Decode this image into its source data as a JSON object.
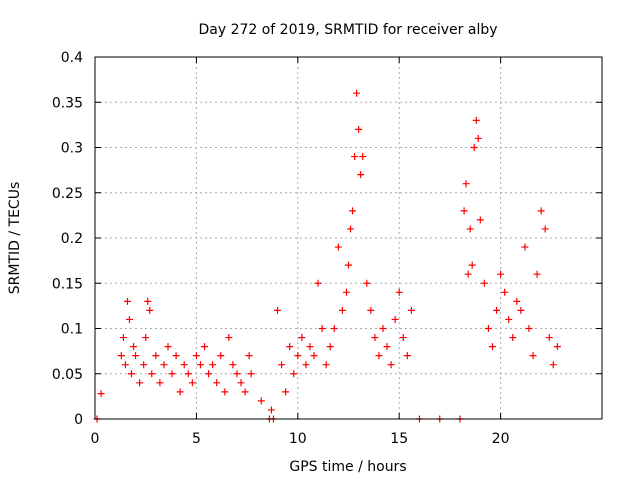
{
  "chart_data": {
    "type": "scatter",
    "title": "Day 272 of 2019, SRMTID for receiver alby",
    "xlabel": "GPS time / hours",
    "ylabel": "SRMTID / TECUs",
    "xlim": [
      0,
      25
    ],
    "ylim": [
      0,
      0.4
    ],
    "grid": true,
    "marker": "+",
    "series_color": "#ff0000",
    "x_ticks": [
      0,
      5,
      10,
      15,
      20
    ],
    "x_tick_labels": [
      "0",
      "5",
      "10",
      "15",
      "20"
    ],
    "y_ticks": [
      0,
      0.05,
      0.1,
      0.15,
      0.2,
      0.25,
      0.3,
      0.35,
      0.4
    ],
    "y_tick_labels": [
      "0",
      "0.05",
      "0.1",
      "0.15",
      "0.2",
      "0.25",
      "0.3",
      "0.35",
      "0.4"
    ],
    "series": [
      {
        "name": "SRMTID",
        "x": [
          0.1,
          0.3,
          1.3,
          1.4,
          1.5,
          1.6,
          1.7,
          1.8,
          1.9,
          2.0,
          2.2,
          2.4,
          2.5,
          2.6,
          2.7,
          2.8,
          3.0,
          3.2,
          3.4,
          3.6,
          3.8,
          4.0,
          4.2,
          4.4,
          4.6,
          4.8,
          5.0,
          5.2,
          5.4,
          5.6,
          5.8,
          6.0,
          6.2,
          6.4,
          6.6,
          6.8,
          7.0,
          7.2,
          7.4,
          7.6,
          7.7,
          8.2,
          8.6,
          8.7,
          8.8,
          9.0,
          9.2,
          9.4,
          9.6,
          9.8,
          10.0,
          10.2,
          10.4,
          10.6,
          10.8,
          11.0,
          11.2,
          11.4,
          11.6,
          11.8,
          12.0,
          12.2,
          12.4,
          12.5,
          12.6,
          12.7,
          12.8,
          12.9,
          13.0,
          13.1,
          13.2,
          13.4,
          13.6,
          13.8,
          14.0,
          14.2,
          14.4,
          14.6,
          14.8,
          15.0,
          15.2,
          15.4,
          15.6,
          16.0,
          17.0,
          18.0,
          18.2,
          18.3,
          18.4,
          18.5,
          18.6,
          18.7,
          18.8,
          18.9,
          19.0,
          19.2,
          19.4,
          19.6,
          19.8,
          20.0,
          20.2,
          20.4,
          20.6,
          20.8,
          21.0,
          21.2,
          21.4,
          21.6,
          21.8,
          22.0,
          22.2,
          22.4,
          22.6,
          22.8
        ],
        "y": [
          0.0,
          0.028,
          0.07,
          0.09,
          0.06,
          0.13,
          0.11,
          0.05,
          0.08,
          0.07,
          0.04,
          0.06,
          0.09,
          0.13,
          0.12,
          0.05,
          0.07,
          0.04,
          0.06,
          0.08,
          0.05,
          0.07,
          0.03,
          0.06,
          0.05,
          0.04,
          0.07,
          0.06,
          0.08,
          0.05,
          0.06,
          0.04,
          0.07,
          0.03,
          0.09,
          0.06,
          0.05,
          0.04,
          0.03,
          0.07,
          0.05,
          0.02,
          0.0,
          0.01,
          0.0,
          0.12,
          0.06,
          0.03,
          0.08,
          0.05,
          0.07,
          0.09,
          0.06,
          0.08,
          0.07,
          0.15,
          0.1,
          0.06,
          0.08,
          0.1,
          0.19,
          0.12,
          0.14,
          0.17,
          0.21,
          0.23,
          0.29,
          0.36,
          0.32,
          0.27,
          0.29,
          0.15,
          0.12,
          0.09,
          0.07,
          0.1,
          0.08,
          0.06,
          0.11,
          0.14,
          0.09,
          0.07,
          0.12,
          0.0,
          0.0,
          0.0,
          0.23,
          0.26,
          0.16,
          0.21,
          0.17,
          0.3,
          0.33,
          0.31,
          0.22,
          0.15,
          0.1,
          0.08,
          0.12,
          0.16,
          0.14,
          0.11,
          0.09,
          0.13,
          0.12,
          0.19,
          0.1,
          0.07,
          0.16,
          0.23,
          0.21,
          0.09,
          0.06,
          0.08
        ]
      }
    ]
  }
}
